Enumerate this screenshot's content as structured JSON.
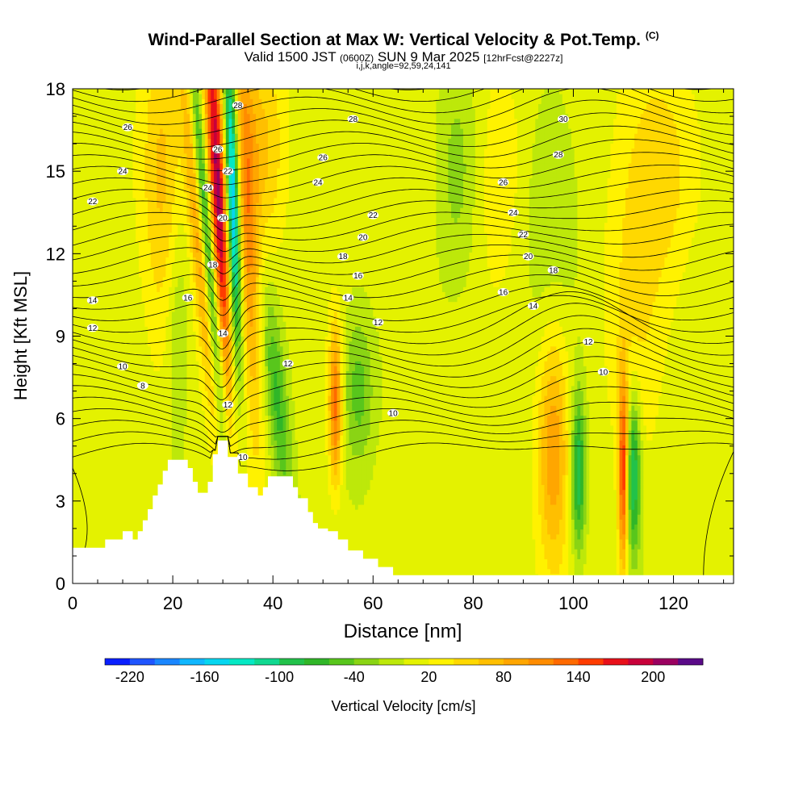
{
  "title": "Wind-Parallel Section at Max W: Vertical Velocity & Pot.Temp.",
  "title_mark": "(C)",
  "subtitle": {
    "main_a": "Valid 1500 JST",
    "paren": "(0600Z)",
    "main_b": "SUN 9 Mar 2025",
    "fcst": "[12hrFcst@2227z]"
  },
  "subtitle2": "i,j,k,angle=92,59,24,141",
  "chart_data": {
    "type": "heatmap",
    "xlabel": "Distance [nm]",
    "ylabel": "Height [Kft MSL]",
    "xlim": [
      0,
      132
    ],
    "ylim": [
      0,
      18
    ],
    "x_ticks": [
      0,
      20,
      40,
      60,
      80,
      100,
      120
    ],
    "y_ticks": [
      0,
      3,
      6,
      9,
      12,
      15,
      18
    ],
    "colorbar": {
      "label": "Vertical Velocity [cm/s]",
      "min": -240,
      "max": 240,
      "step": 20,
      "tick_values": [
        -220,
        -160,
        -100,
        -40,
        20,
        80,
        140,
        200
      ],
      "colors": [
        "#0a1fff",
        "#1f55ff",
        "#1a86ff",
        "#10b7ff",
        "#06d6f0",
        "#05e8c4",
        "#10d890",
        "#22c24a",
        "#30b628",
        "#58c61c",
        "#8ad414",
        "#bde80a",
        "#e4f200",
        "#fff200",
        "#ffd800",
        "#ffbf00",
        "#ffa600",
        "#ff8c00",
        "#ff6a00",
        "#ff3c00",
        "#e8101a",
        "#c8003a",
        "#9a0060",
        "#5a0a88"
      ]
    },
    "terrain": [
      [
        0,
        0
      ],
      [
        0,
        1.3
      ],
      [
        6.5,
        1.3
      ],
      [
        6.5,
        1.6
      ],
      [
        10,
        1.6
      ],
      [
        10,
        1.9
      ],
      [
        12,
        1.9
      ],
      [
        12,
        1.6
      ],
      [
        13,
        1.6
      ],
      [
        13,
        1.9
      ],
      [
        14,
        1.9
      ],
      [
        14,
        2.3
      ],
      [
        15,
        2.3
      ],
      [
        15,
        2.7
      ],
      [
        16,
        2.7
      ],
      [
        16,
        3.2
      ],
      [
        17,
        3.2
      ],
      [
        17,
        3.6
      ],
      [
        18,
        3.6
      ],
      [
        18,
        4.1
      ],
      [
        19,
        4.1
      ],
      [
        19,
        4.5
      ],
      [
        23,
        4.5
      ],
      [
        23,
        4.2
      ],
      [
        24,
        4.2
      ],
      [
        24,
        3.7
      ],
      [
        25,
        3.7
      ],
      [
        25,
        3.3
      ],
      [
        27,
        3.3
      ],
      [
        27,
        3.7
      ],
      [
        28,
        3.7
      ],
      [
        28,
        4.7
      ],
      [
        29,
        4.7
      ],
      [
        29,
        5.2
      ],
      [
        31,
        5.2
      ],
      [
        31,
        4.6
      ],
      [
        33,
        4.6
      ],
      [
        33,
        4.0
      ],
      [
        35,
        4.0
      ],
      [
        35,
        3.5
      ],
      [
        37,
        3.5
      ],
      [
        37,
        3.2
      ],
      [
        38,
        3.2
      ],
      [
        38,
        3.5
      ],
      [
        39,
        3.5
      ],
      [
        39,
        3.9
      ],
      [
        44,
        3.9
      ],
      [
        44,
        3.5
      ],
      [
        45,
        3.5
      ],
      [
        45,
        3.1
      ],
      [
        47,
        3.1
      ],
      [
        47,
        2.6
      ],
      [
        48,
        2.6
      ],
      [
        48,
        2.2
      ],
      [
        49,
        2.2
      ],
      [
        49,
        2.0
      ],
      [
        51,
        2.0
      ],
      [
        51,
        1.9
      ],
      [
        53,
        1.9
      ],
      [
        53,
        1.6
      ],
      [
        55,
        1.6
      ],
      [
        55,
        1.2
      ],
      [
        58,
        1.2
      ],
      [
        58,
        0.9
      ],
      [
        61,
        0.9
      ],
      [
        61,
        0.6
      ],
      [
        64,
        0.6
      ],
      [
        64,
        0.3
      ],
      [
        132,
        0.3
      ],
      [
        132,
        0
      ]
    ],
    "updrafts": [
      {
        "x": 29,
        "y": 14.5,
        "sx": 1.2,
        "sy": 5,
        "value": 200,
        "tilt": -0.3
      },
      {
        "x": 26,
        "y": 12,
        "sx": 1.4,
        "sy": 5,
        "value": 110,
        "tilt": -0.5
      },
      {
        "x": 35,
        "y": 13,
        "sx": 1.5,
        "sy": 6,
        "value": 90,
        "tilt": -0.2
      },
      {
        "x": 52.5,
        "y": 6.5,
        "sx": 0.9,
        "sy": 2,
        "value": 120,
        "tilt": 0
      },
      {
        "x": 96,
        "y": 5,
        "sx": 2.2,
        "sy": 3,
        "value": 90,
        "tilt": 0
      },
      {
        "x": 110,
        "y": 4,
        "sx": 0.7,
        "sy": 2.5,
        "value": 150,
        "tilt": 0
      },
      {
        "x": 112,
        "y": 12,
        "sx": 4,
        "sy": 5,
        "value": 35,
        "tilt": 0
      },
      {
        "x": 118,
        "y": 15,
        "sx": 4,
        "sy": 3,
        "value": 40,
        "tilt": 0
      },
      {
        "x": 85,
        "y": 15,
        "sx": 5,
        "sy": 3,
        "value": 30,
        "tilt": 0
      },
      {
        "x": 18,
        "y": 15,
        "sx": 3,
        "sy": 4,
        "value": 60,
        "tilt": 0
      },
      {
        "x": 38,
        "y": 16,
        "sx": 3,
        "sy": 3,
        "value": 50,
        "tilt": 0
      }
    ],
    "downdrafts": [
      {
        "x": 27,
        "y": 12,
        "sx": 0.9,
        "sy": 5,
        "value": -160,
        "tilt": -0.45
      },
      {
        "x": 32,
        "y": 14,
        "sx": 0.9,
        "sy": 4,
        "value": -200,
        "tilt": -0.15
      },
      {
        "x": 41,
        "y": 6.5,
        "sx": 1.5,
        "sy": 3,
        "value": -70,
        "tilt": -0.5
      },
      {
        "x": 57,
        "y": 7,
        "sx": 2.2,
        "sy": 2,
        "value": -60,
        "tilt": 0
      },
      {
        "x": 101,
        "y": 4,
        "sx": 1,
        "sy": 2,
        "value": -110,
        "tilt": 0
      },
      {
        "x": 112,
        "y": 4,
        "sx": 1,
        "sy": 2,
        "value": -120,
        "tilt": 0
      },
      {
        "x": 77,
        "y": 15,
        "sx": 3,
        "sy": 3,
        "value": -40,
        "tilt": 0
      },
      {
        "x": 95,
        "y": 14,
        "sx": 4,
        "sy": 3,
        "value": -35,
        "tilt": 0
      },
      {
        "x": 21,
        "y": 9,
        "sx": 1.5,
        "sy": 3,
        "value": -40,
        "tilt": 0
      }
    ],
    "isentropes_labeled": [
      {
        "label": "8",
        "x": 14,
        "y": 7.2
      },
      {
        "label": "10",
        "x": 10,
        "y": 7.9
      },
      {
        "label": "10",
        "x": 34,
        "y": 4.6
      },
      {
        "label": "10",
        "x": 64,
        "y": 6.2
      },
      {
        "label": "10",
        "x": 106,
        "y": 7.7
      },
      {
        "label": "12",
        "x": 4,
        "y": 9.3
      },
      {
        "label": "12",
        "x": 31,
        "y": 6.5
      },
      {
        "label": "12",
        "x": 43,
        "y": 8.0
      },
      {
        "label": "12",
        "x": 61,
        "y": 9.5
      },
      {
        "label": "12",
        "x": 103,
        "y": 8.8
      },
      {
        "label": "14",
        "x": 4,
        "y": 10.3
      },
      {
        "label": "14",
        "x": 30,
        "y": 9.1
      },
      {
        "label": "14",
        "x": 55,
        "y": 10.4
      },
      {
        "label": "14",
        "x": 92,
        "y": 10.1
      },
      {
        "label": "16",
        "x": 23,
        "y": 10.4
      },
      {
        "label": "16",
        "x": 57,
        "y": 11.2
      },
      {
        "label": "16",
        "x": 86,
        "y": 10.6
      },
      {
        "label": "18",
        "x": 28,
        "y": 11.6
      },
      {
        "label": "18",
        "x": 54,
        "y": 11.9
      },
      {
        "label": "18",
        "x": 96,
        "y": 11.4
      },
      {
        "label": "20",
        "x": 30,
        "y": 13.3
      },
      {
        "label": "20",
        "x": 58,
        "y": 12.6
      },
      {
        "label": "20",
        "x": 91,
        "y": 11.9
      },
      {
        "label": "22",
        "x": 4,
        "y": 13.9
      },
      {
        "label": "22",
        "x": 31,
        "y": 15.0
      },
      {
        "label": "22",
        "x": 60,
        "y": 13.4
      },
      {
        "label": "22",
        "x": 90,
        "y": 12.7
      },
      {
        "label": "24",
        "x": 10,
        "y": 15.0
      },
      {
        "label": "24",
        "x": 27,
        "y": 14.4
      },
      {
        "label": "24",
        "x": 49,
        "y": 14.6
      },
      {
        "label": "24",
        "x": 88,
        "y": 13.5
      },
      {
        "label": "26",
        "x": 11,
        "y": 16.6
      },
      {
        "label": "26",
        "x": 29,
        "y": 15.8
      },
      {
        "label": "26",
        "x": 50,
        "y": 15.5
      },
      {
        "label": "26",
        "x": 86,
        "y": 14.6
      },
      {
        "label": "28",
        "x": 33,
        "y": 17.4
      },
      {
        "label": "28",
        "x": 56,
        "y": 16.9
      },
      {
        "label": "28",
        "x": 97,
        "y": 15.6
      },
      {
        "label": "30",
        "x": 98,
        "y": 16.9
      }
    ]
  }
}
